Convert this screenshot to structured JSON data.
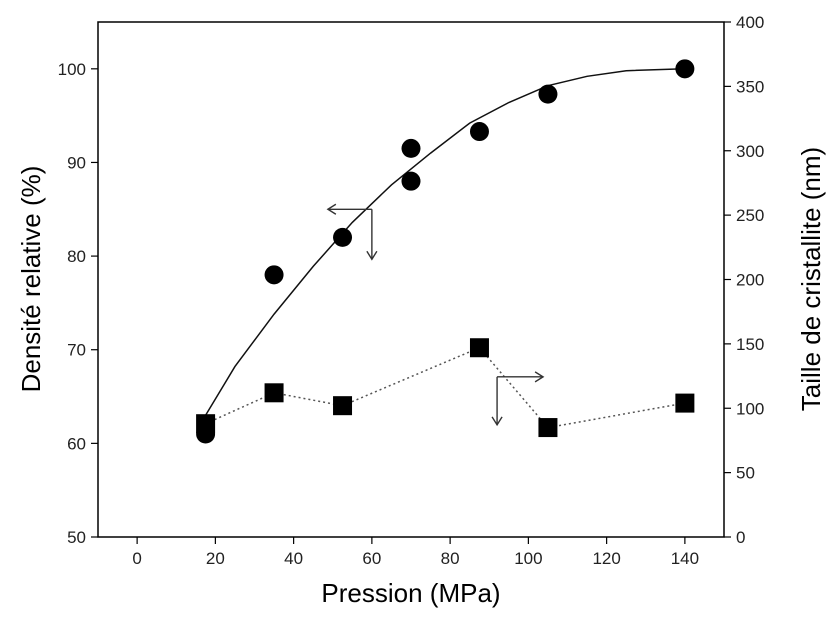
{
  "chart_data": {
    "type": "scatter",
    "xlabel": "Pression (MPa)",
    "ylabel_left": "Densité relative (%)",
    "ylabel_right": "Taille de cristallite (nm)",
    "xlim": [
      -10,
      150
    ],
    "ylim_left": [
      50,
      105
    ],
    "ylim_right": [
      0,
      400
    ],
    "x_ticks": [
      0,
      20,
      40,
      60,
      80,
      100,
      120,
      140
    ],
    "y_left_ticks": [
      50,
      60,
      70,
      80,
      90,
      100
    ],
    "y_right_ticks": [
      0,
      50,
      100,
      150,
      200,
      250,
      300,
      350,
      400
    ],
    "grid": false,
    "series": [
      {
        "axis": "left",
        "marker": "circle",
        "color": "#000000",
        "x": [
          17.5,
          35,
          52.5,
          70,
          70,
          87.5,
          105,
          140
        ],
        "y": [
          61,
          78,
          82,
          88,
          91.5,
          93.3,
          97.3,
          100
        ]
      },
      {
        "axis": "right",
        "marker": "square",
        "color": "#000000",
        "x": [
          17.5,
          35,
          52.5,
          87.5,
          105,
          140
        ],
        "y": [
          88,
          112,
          102,
          147,
          85,
          104
        ]
      }
    ],
    "fit_curve": {
      "axis": "left",
      "x": [
        17.5,
        25,
        35,
        45,
        55,
        65,
        75,
        85,
        95,
        105,
        115,
        125,
        140
      ],
      "y": [
        63,
        68.2,
        73.8,
        78.9,
        83.6,
        87.6,
        91.0,
        94.2,
        96.4,
        98.2,
        99.2,
        99.8,
        100
      ]
    },
    "annotations": [
      {
        "type": "axis-arrow",
        "points_to": "left-axis",
        "anchor": [
          60,
          85
        ]
      },
      {
        "type": "axis-arrow",
        "points_to": "right-axis",
        "anchor": [
          92,
          70.2
        ]
      }
    ]
  }
}
